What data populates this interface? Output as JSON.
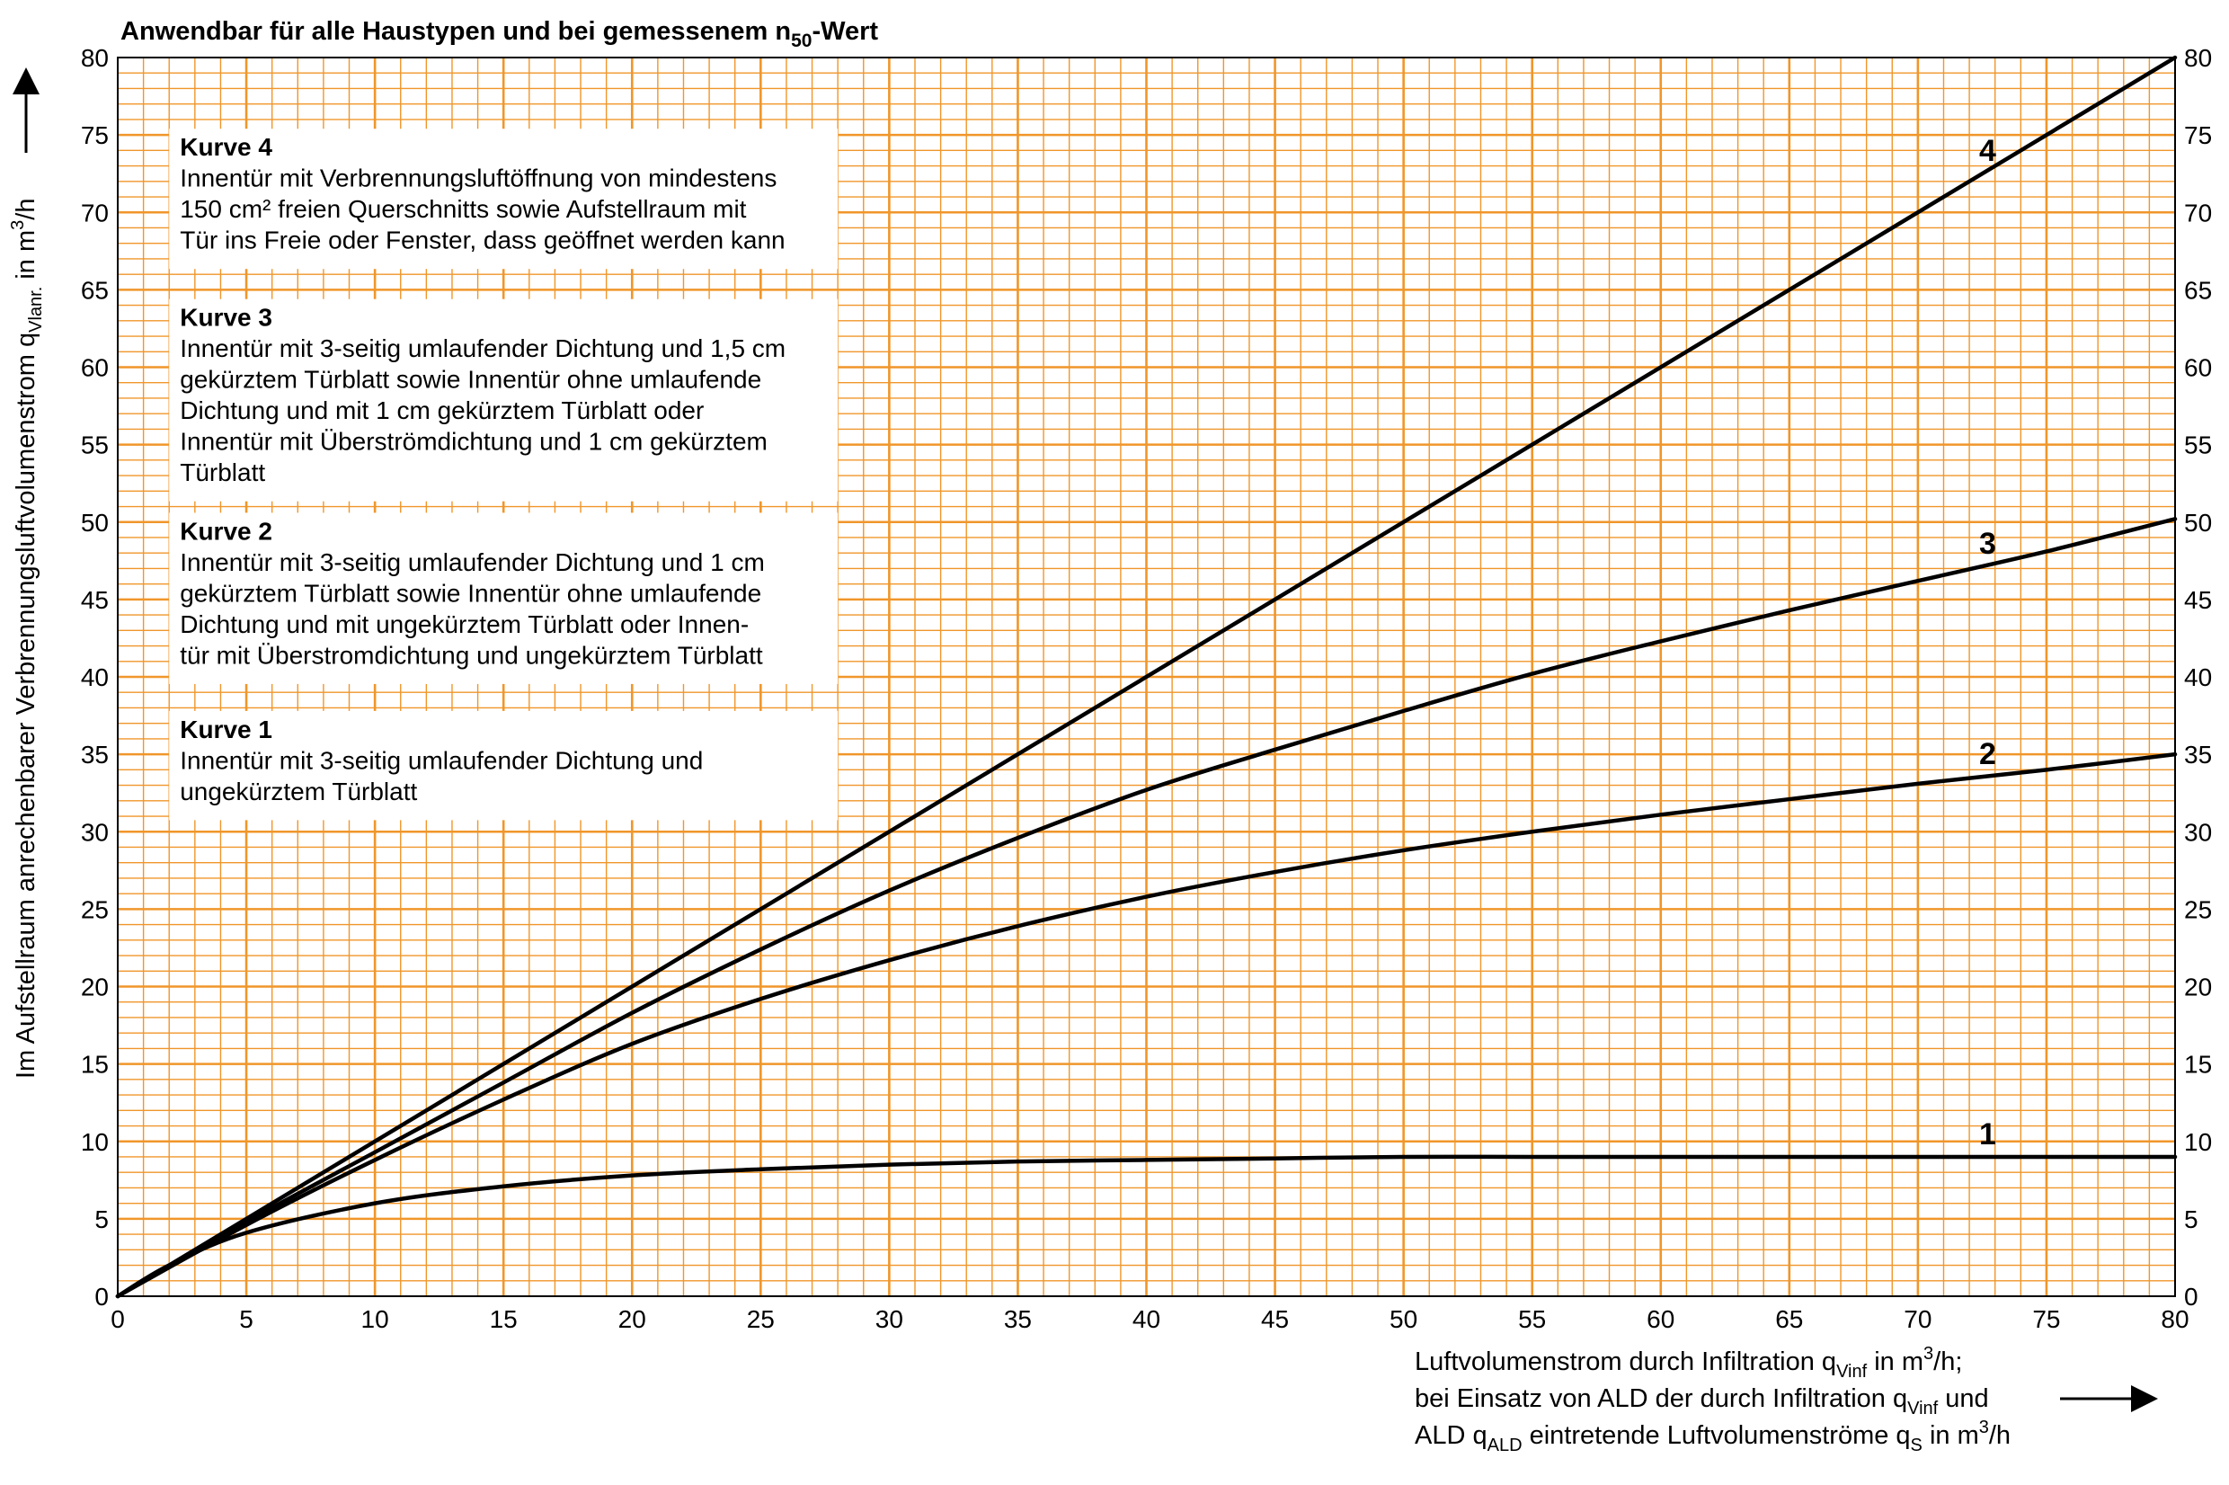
{
  "chart_data": {
    "type": "line",
    "title_main": "Anwendbar für alle Haustypen und bei gemessenem n",
    "title_sub": "50",
    "title_end": "-Wert",
    "xlim": [
      0,
      80
    ],
    "ylim": [
      0,
      80
    ],
    "x_ticks": [
      "0",
      "5",
      "10",
      "15",
      "20",
      "25",
      "30",
      "35",
      "40",
      "45",
      "50",
      "55",
      "60",
      "65",
      "70",
      "75",
      "80"
    ],
    "y_ticks": [
      "0",
      "5",
      "10",
      "15",
      "20",
      "25",
      "30",
      "35",
      "40",
      "45",
      "50",
      "55",
      "60",
      "65",
      "70",
      "75",
      "80"
    ],
    "grid": true,
    "grid_color": "#f0962a",
    "line_color": "#000000",
    "xlabel": {
      "line1_a": "Luftvolumenstrom durch Infiltration q",
      "line1_sub": "Vinf",
      "line1_b": "  in m",
      "line1_sup": "3",
      "line1_c": "/h;",
      "line2_a": "bei Einsatz von ALD der durch Infiltration q",
      "line2_sub": "Vinf",
      "line2_b": "  und",
      "line3_a": "ALD q",
      "line3_sub1": "ALD",
      "line3_b": " eintretende Luftvolumenströme q",
      "line3_sub2": "S",
      "line3_c": " in m",
      "line3_sup": "3",
      "line3_d": "/h"
    },
    "ylabel": {
      "a": "Im Aufstellraum anrechenbarer Verbrennungsluftvolumenstrom q",
      "sub": "Vlanr.",
      "b": " in m",
      "sup": "3",
      "c": "/h"
    },
    "series": [
      {
        "name": "4",
        "x": [
          0,
          80
        ],
        "y": [
          0,
          80
        ]
      },
      {
        "name": "3",
        "x": [
          0,
          5,
          10,
          15,
          20,
          25,
          30,
          35,
          40,
          45,
          50,
          55,
          60,
          65,
          70,
          75,
          80
        ],
        "y": [
          0,
          4.8,
          9.3,
          13.8,
          18.3,
          22.4,
          26.2,
          29.6,
          32.7,
          35.3,
          37.8,
          40.2,
          42.3,
          44.3,
          46.2,
          48.1,
          50.2
        ]
      },
      {
        "name": "2",
        "x": [
          0,
          5,
          10,
          15,
          20,
          25,
          30,
          35,
          40,
          45,
          50,
          55,
          60,
          65,
          70,
          75,
          80
        ],
        "y": [
          0,
          4.6,
          8.8,
          12.7,
          16.3,
          19.2,
          21.7,
          23.9,
          25.8,
          27.4,
          28.8,
          30.0,
          31.1,
          32.1,
          33.1,
          34.0,
          35.0
        ]
      },
      {
        "name": "1",
        "x": [
          0,
          2,
          5,
          10,
          15,
          20,
          25,
          30,
          35,
          40,
          45,
          50,
          55,
          60,
          65,
          70,
          75,
          80
        ],
        "y": [
          0,
          2.0,
          4.1,
          6.0,
          7.1,
          7.8,
          8.2,
          8.5,
          8.7,
          8.8,
          8.9,
          9.0,
          9.0,
          9.0,
          9.0,
          9.0,
          9.0,
          9.0
        ]
      }
    ],
    "legend": [
      {
        "head": "Kurve 4",
        "lines": [
          "Innentür mit Verbrennungsluftöffnung von mindestens",
          "150 cm² freien Querschnitts sowie Aufstellraum mit",
          "Tür ins Freie oder Fenster, dass geöffnet werden kann"
        ]
      },
      {
        "head": "Kurve 3",
        "lines": [
          "Innentür mit 3-seitig umlaufender Dichtung und 1,5 cm",
          "gekürztem Türblatt sowie Innentür ohne umlaufende",
          "Dichtung und mit 1 cm gekürztem Türblatt oder",
          "Innentür mit Überströmdichtung und 1 cm gekürztem",
          "Türblatt"
        ]
      },
      {
        "head": "Kurve 2",
        "lines": [
          "Innentür mit 3-seitig umlaufender Dichtung und 1 cm",
          "gekürztem Türblatt sowie Innentür ohne umlaufende",
          "Dichtung und mit ungekürztem Türblatt oder Innen-",
          "tür mit Überstromdichtung und ungekürztem Türblatt"
        ]
      },
      {
        "head": "Kurve 1",
        "lines": [
          "Innentür mit 3-seitig umlaufender Dichtung und",
          "ungekürztem Türblatt"
        ]
      }
    ],
    "legend_placement": "top-left"
  }
}
